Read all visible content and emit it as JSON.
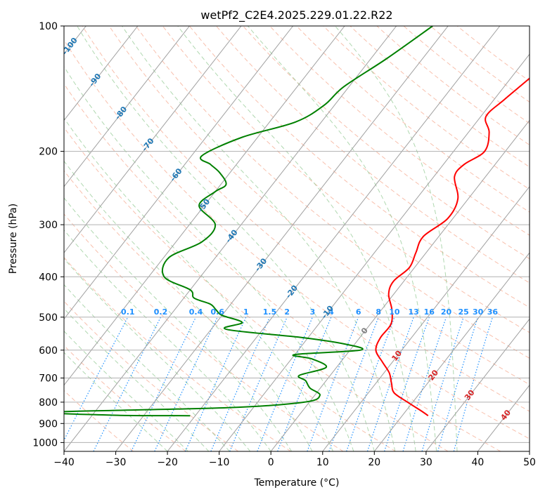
{
  "chart_data": {
    "type": "line",
    "title": "wetPf2_C2E4.2025.229.01.22.R22",
    "xlabel": "Temperature (°C)",
    "ylabel": "Pressure (hPa)",
    "xlim": [
      -40,
      50
    ],
    "ylim": [
      1050,
      100
    ],
    "y_scale": "log",
    "grid": true,
    "x_ticks": [
      -40,
      -30,
      -20,
      -10,
      0,
      10,
      20,
      30,
      40,
      50
    ],
    "x_tick_labels": [
      "−40",
      "−30",
      "−20",
      "−10",
      "0",
      "10",
      "20",
      "30",
      "40",
      "50"
    ],
    "y_ticks": [
      100,
      200,
      300,
      400,
      500,
      600,
      700,
      800,
      900,
      1000
    ],
    "y_tick_labels": [
      "100",
      "200",
      "300",
      "400",
      "500",
      "600",
      "700",
      "800",
      "900",
      "1000"
    ],
    "colors": {
      "temperature": "#ff0000",
      "dewpoint": "#008000",
      "skew_isotherm": "#a0a0a0",
      "dry_adiabat": "#f5a58a",
      "moist_adiabat": "#8fc88f",
      "mixing_ratio": "#1e90ff",
      "isotherm_label": "#1f77b4",
      "warm_isotherm_label": "#d62728",
      "zero_isotherm_label": "#808080"
    },
    "series": [
      {
        "name": "",
        "role": "temperature",
        "points": [
          [
            -2,
            100
          ],
          [
            -5,
            115
          ],
          [
            -6,
            130
          ],
          [
            -8,
            150
          ],
          [
            -9,
            165
          ],
          [
            -6,
            180
          ],
          [
            -4,
            200
          ],
          [
            -6,
            215
          ],
          [
            -6,
            230
          ],
          [
            -2,
            260
          ],
          [
            -1,
            290
          ],
          [
            -3,
            320
          ],
          [
            -2,
            350
          ],
          [
            -1,
            380
          ],
          [
            -2,
            410
          ],
          [
            -1,
            440
          ],
          [
            2,
            480
          ],
          [
            4,
            520
          ],
          [
            4,
            560
          ],
          [
            5,
            600
          ],
          [
            8,
            640
          ],
          [
            11,
            680
          ],
          [
            13,
            720
          ],
          [
            15,
            760
          ],
          [
            19,
            800
          ],
          [
            23,
            840
          ],
          [
            25,
            862
          ]
        ]
      },
      {
        "name": "",
        "role": "dewpoint",
        "points": [
          [
            -33,
            100
          ],
          [
            -37,
            120
          ],
          [
            -41,
            140
          ],
          [
            -42,
            155
          ],
          [
            -45,
            170
          ],
          [
            -53,
            185
          ],
          [
            -58,
            205
          ],
          [
            -55,
            215
          ],
          [
            -52,
            225
          ],
          [
            -49,
            240
          ],
          [
            -50,
            250
          ],
          [
            -51,
            270
          ],
          [
            -45,
            300
          ],
          [
            -45,
            330
          ],
          [
            -49,
            360
          ],
          [
            -47,
            400
          ],
          [
            -40,
            430
          ],
          [
            -38,
            450
          ],
          [
            -34,
            465
          ],
          [
            -32,
            480
          ],
          [
            -30,
            495
          ],
          [
            -25,
            515
          ],
          [
            -27,
            535
          ],
          [
            -11,
            560
          ],
          [
            -2,
            580
          ],
          [
            2,
            600
          ],
          [
            -10,
            615
          ],
          [
            -6,
            630
          ],
          [
            -2,
            660
          ],
          [
            -6,
            690
          ],
          [
            -4,
            710
          ],
          [
            -2,
            740
          ],
          [
            1,
            770
          ],
          [
            -1,
            800
          ],
          [
            -15,
            825
          ],
          [
            -48,
            845
          ],
          [
            -35,
            860
          ],
          [
            -21,
            862
          ]
        ]
      }
    ],
    "isotherm_labels": [
      {
        "value": -100,
        "text": "-100",
        "p": 112
      },
      {
        "value": -90,
        "text": "-90",
        "p": 135
      },
      {
        "value": -80,
        "text": "-80",
        "p": 162
      },
      {
        "value": -70,
        "text": "-70",
        "p": 193
      },
      {
        "value": -60,
        "text": "-60",
        "p": 228
      },
      {
        "value": -50,
        "text": "-50",
        "p": 270
      },
      {
        "value": -40,
        "text": "-40",
        "p": 320
      },
      {
        "value": -30,
        "text": "-30",
        "p": 375
      },
      {
        "value": -20,
        "text": "-20",
        "p": 435
      },
      {
        "value": -10,
        "text": "-10",
        "p": 487
      },
      {
        "value": 0,
        "text": "0",
        "p": 540
      },
      {
        "value": 10,
        "text": "10",
        "p": 620
      },
      {
        "value": 20,
        "text": "20",
        "p": 690
      },
      {
        "value": 30,
        "text": "30",
        "p": 770
      },
      {
        "value": 40,
        "text": "40",
        "p": 860
      }
    ],
    "mixing_ratios": [
      0.1,
      0.2,
      0.4,
      0.6,
      1,
      1.5,
      2,
      3,
      4,
      6,
      8,
      10,
      13,
      16,
      20,
      25,
      30,
      36
    ],
    "mixing_ratio_labels": [
      "0.1",
      "0.2",
      "0.4",
      "0.6",
      "1",
      "1.5",
      "2",
      "3",
      "4",
      "6",
      "8",
      "10",
      "13",
      "16",
      "20",
      "25",
      "30",
      "36"
    ],
    "mixing_ratio_label_pressure": 500
  }
}
